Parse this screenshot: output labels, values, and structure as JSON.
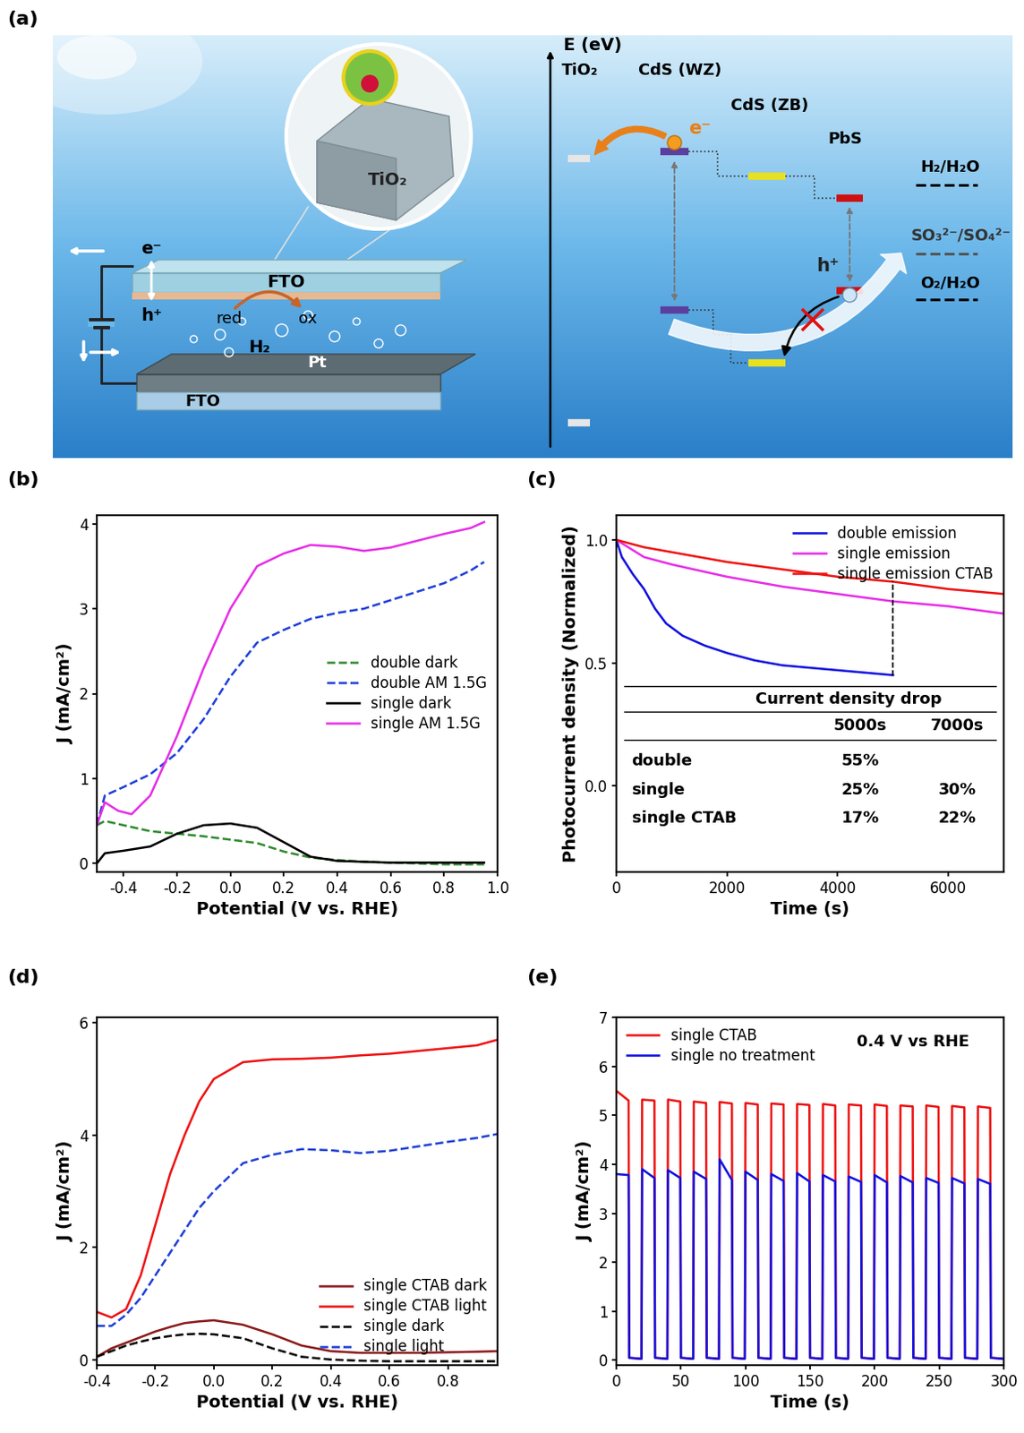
{
  "diagram": {
    "panel": "(a)",
    "energy_axis": "E (eV)",
    "materials": [
      "TiO₂",
      "CdS (WZ)",
      "CdS (ZB)",
      "PbS"
    ],
    "redox_levels": [
      "H₂/H₂O",
      "SO₃²⁻/SO₄²⁻",
      "O₂/H₂O"
    ],
    "carriers": {
      "electron": "e⁻",
      "hole": "h⁺"
    },
    "cell": {
      "photoanode": "FTO",
      "cathode_substrate": "FTO",
      "catalyst": "Pt",
      "gas": "H₂",
      "reduced": "red",
      "oxidized": "ox",
      "particle": "TiO₂",
      "electron": "e⁻",
      "hole": "h⁺"
    }
  },
  "chart_data": [
    {
      "type": "line",
      "panel": "(b)",
      "x_label": "Potential (V vs. RHE)",
      "y_label": "J (mA/cm²)",
      "xlim": [
        -0.5,
        1.0
      ],
      "ylim": [
        -0.1,
        4.1
      ],
      "xticks": [
        -0.4,
        -0.2,
        {
          "value": 0,
          "label": "0.0"
        },
        0.2,
        0.4,
        0.6,
        0.8,
        {
          "value": 1,
          "label": "1.0"
        }
      ],
      "yticks": [
        0,
        1,
        2,
        3,
        4
      ],
      "legend": "center right",
      "series": [
        {
          "name": "double dark",
          "color": "#2e8b2e",
          "line_style": "dashed",
          "x": [
            -0.5,
            -0.47,
            -0.4,
            -0.3,
            -0.2,
            -0.1,
            0.0,
            0.1,
            0.2,
            0.3,
            0.4,
            0.5,
            0.6,
            0.7,
            0.8,
            0.9,
            0.95
          ],
          "values": [
            0.45,
            0.5,
            0.45,
            0.38,
            0.35,
            0.32,
            0.28,
            0.24,
            0.14,
            0.07,
            0.04,
            0.02,
            0.01,
            0.0,
            -0.01,
            -0.01,
            -0.01
          ]
        },
        {
          "name": "double AM 1.5G",
          "color": "#1f3fd8",
          "line_style": "dashed",
          "x": [
            -0.5,
            -0.47,
            -0.4,
            -0.3,
            -0.2,
            -0.1,
            0.0,
            0.1,
            0.2,
            0.3,
            0.4,
            0.5,
            0.6,
            0.7,
            0.8,
            0.9,
            0.95
          ],
          "values": [
            0.45,
            0.8,
            0.9,
            1.05,
            1.3,
            1.7,
            2.2,
            2.6,
            2.75,
            2.88,
            2.95,
            3.0,
            3.1,
            3.2,
            3.3,
            3.45,
            3.55
          ]
        },
        {
          "name": "single dark",
          "color": "#000000",
          "line_style": "solid",
          "x": [
            -0.5,
            -0.47,
            -0.4,
            -0.3,
            -0.2,
            -0.1,
            0.0,
            0.1,
            0.2,
            0.3,
            0.4,
            0.5,
            0.6,
            0.7,
            0.8,
            0.9,
            0.95
          ],
          "values": [
            0.0,
            0.12,
            0.15,
            0.2,
            0.35,
            0.45,
            0.47,
            0.42,
            0.25,
            0.08,
            0.03,
            0.02,
            0.01,
            0.01,
            0.01,
            0.01,
            0.01
          ]
        },
        {
          "name": "single AM 1.5G",
          "color": "#e62ee6",
          "line_style": "solid",
          "x": [
            -0.5,
            -0.47,
            -0.42,
            -0.37,
            -0.3,
            -0.2,
            -0.1,
            0.0,
            0.1,
            0.2,
            0.3,
            0.4,
            0.5,
            0.6,
            0.7,
            0.8,
            0.9,
            0.95
          ],
          "values": [
            0.45,
            0.72,
            0.62,
            0.58,
            0.8,
            1.5,
            2.3,
            3.0,
            3.5,
            3.65,
            3.75,
            3.73,
            3.68,
            3.72,
            3.8,
            3.88,
            3.95,
            4.02
          ]
        }
      ]
    },
    {
      "type": "line",
      "panel": "(c)",
      "x_label": "Time (s)",
      "y_label": "Photocurrent density (Normalized)",
      "xlim": [
        0,
        7000
      ],
      "ylim": [
        -0.35,
        1.1
      ],
      "xticks": [
        0,
        2000,
        4000,
        6000
      ],
      "yticks": [
        {
          "value": 0,
          "label": "0.0"
        },
        0.5,
        {
          "value": 1,
          "label": "1.0"
        }
      ],
      "legend": "upper right",
      "series": [
        {
          "name": "double emission",
          "color": "#1010e0",
          "line_style": "solid",
          "x": [
            0,
            100,
            300,
            500,
            700,
            900,
            1200,
            1600,
            2000,
            2500,
            3000,
            3500,
            4000,
            4500,
            5000
          ],
          "values": [
            1.0,
            0.93,
            0.86,
            0.8,
            0.72,
            0.66,
            0.61,
            0.57,
            0.54,
            0.51,
            0.49,
            0.48,
            0.47,
            0.46,
            0.45
          ]
        },
        {
          "name": "single emission",
          "color": "#e62ee6",
          "line_style": "solid",
          "x": [
            0,
            500,
            1000,
            2000,
            3000,
            4000,
            5000,
            6000,
            7000
          ],
          "values": [
            1.0,
            0.93,
            0.9,
            0.85,
            0.81,
            0.78,
            0.75,
            0.73,
            0.7
          ]
        },
        {
          "name": "single emission CTAB",
          "color": "#ee1111",
          "line_style": "solid",
          "x": [
            0,
            500,
            1000,
            2000,
            3000,
            4000,
            5000,
            6000,
            7000
          ],
          "values": [
            1.0,
            0.97,
            0.95,
            0.91,
            0.88,
            0.85,
            0.83,
            0.8,
            0.78
          ]
        }
      ],
      "reference_line": {
        "x": 5000,
        "y": [
          0.45,
          0.83
        ]
      },
      "table": {
        "title": "Current density drop",
        "columns": [
          "5000s",
          "7000s"
        ],
        "rows": [
          {
            "label": "double",
            "values": [
              "55%",
              null
            ]
          },
          {
            "label": "single",
            "values": [
              "25%",
              "30%"
            ]
          },
          {
            "label": "single CTAB",
            "values": [
              "17%",
              "22%"
            ]
          }
        ]
      }
    },
    {
      "type": "line",
      "panel": "(d)",
      "x_label": "Potential (V vs. RHE)",
      "y_label": "J (mA/cm²)",
      "xlim": [
        -0.4,
        0.97
      ],
      "ylim": [
        -0.1,
        6.1
      ],
      "xticks": [
        -0.4,
        -0.2,
        {
          "value": 0,
          "label": "0.0"
        },
        0.2,
        0.4,
        0.6,
        0.8
      ],
      "yticks": [
        0,
        2,
        4,
        6
      ],
      "legend": "lower right",
      "series": [
        {
          "name": "single CTAB dark",
          "color": "#8b1a1a",
          "line_style": "solid",
          "x": [
            -0.4,
            -0.35,
            -0.3,
            -0.25,
            -0.2,
            -0.15,
            -0.1,
            -0.05,
            0.0,
            0.1,
            0.2,
            0.3,
            0.4,
            0.5,
            0.6,
            0.7,
            0.8,
            0.9,
            0.97
          ],
          "values": [
            0.05,
            0.2,
            0.3,
            0.4,
            0.5,
            0.58,
            0.65,
            0.68,
            0.7,
            0.62,
            0.45,
            0.25,
            0.15,
            0.12,
            0.12,
            0.12,
            0.13,
            0.14,
            0.15
          ]
        },
        {
          "name": "single CTAB light",
          "color": "#ee1111",
          "line_style": "solid",
          "x": [
            -0.4,
            -0.35,
            -0.3,
            -0.25,
            -0.2,
            -0.15,
            -0.1,
            -0.05,
            0.0,
            0.1,
            0.2,
            0.3,
            0.4,
            0.5,
            0.6,
            0.7,
            0.8,
            0.9,
            0.97
          ],
          "values": [
            0.85,
            0.75,
            0.9,
            1.5,
            2.4,
            3.3,
            4.0,
            4.6,
            5.0,
            5.3,
            5.35,
            5.36,
            5.38,
            5.42,
            5.45,
            5.5,
            5.55,
            5.6,
            5.7
          ]
        },
        {
          "name": "single dark",
          "color": "#000000",
          "line_style": "dashed",
          "x": [
            -0.4,
            -0.35,
            -0.3,
            -0.25,
            -0.2,
            -0.15,
            -0.1,
            -0.05,
            0.0,
            0.1,
            0.2,
            0.3,
            0.4,
            0.5,
            0.6,
            0.7,
            0.8,
            0.9,
            0.97
          ],
          "values": [
            0.05,
            0.15,
            0.25,
            0.32,
            0.38,
            0.42,
            0.45,
            0.46,
            0.45,
            0.38,
            0.2,
            0.05,
            0.0,
            -0.02,
            -0.03,
            -0.03,
            -0.03,
            -0.03,
            -0.03
          ]
        },
        {
          "name": "single light",
          "color": "#1f3fd8",
          "line_style": "dashed",
          "x": [
            -0.4,
            -0.35,
            -0.3,
            -0.25,
            -0.2,
            -0.15,
            -0.1,
            -0.05,
            0.0,
            0.1,
            0.2,
            0.3,
            0.4,
            0.5,
            0.6,
            0.7,
            0.8,
            0.9,
            0.97
          ],
          "values": [
            0.6,
            0.6,
            0.8,
            1.1,
            1.5,
            1.9,
            2.3,
            2.7,
            3.0,
            3.5,
            3.65,
            3.75,
            3.73,
            3.68,
            3.72,
            3.8,
            3.88,
            3.95,
            4.02
          ]
        }
      ]
    },
    {
      "type": "line",
      "panel": "(e)",
      "x_label": "Time (s)",
      "y_label": "J (mA/cm²)",
      "xlim": [
        0,
        300
      ],
      "ylim": [
        -0.1,
        7
      ],
      "xticks": [
        0,
        50,
        100,
        150,
        200,
        250,
        300
      ],
      "yticks": [
        0,
        1,
        2,
        3,
        4,
        5,
        6,
        7
      ],
      "legend": "upper left",
      "annotation": "0.4 V vs RHE",
      "series": [
        {
          "name": "single CTAB",
          "color": "#ee1111",
          "line_style": "solid",
          "x": [
            0,
            9.5,
            10,
            19.5,
            20,
            29.5,
            30,
            39.5,
            40,
            49.5,
            50,
            59.5,
            60,
            69.5,
            70,
            79.5,
            80,
            89.5,
            90,
            99.5,
            100,
            109.5,
            110,
            119.5,
            120,
            129.5,
            130,
            139.5,
            140,
            149.5,
            150,
            159.5,
            160,
            169.5,
            170,
            179.5,
            180,
            189.5,
            190,
            199.5,
            200,
            209.5,
            210,
            219.5,
            220,
            229.5,
            230,
            239.5,
            240,
            249.5,
            250,
            259.5,
            260,
            269.5,
            270,
            279.5,
            280,
            289.5,
            290,
            300
          ],
          "values": [
            5.5,
            5.3,
            0.05,
            0.03,
            5.32,
            5.3,
            0.05,
            0.03,
            5.32,
            5.28,
            0.05,
            0.03,
            5.28,
            5.25,
            0.05,
            0.03,
            5.27,
            5.24,
            0.05,
            0.03,
            5.25,
            5.22,
            0.05,
            0.03,
            5.24,
            5.22,
            0.05,
            0.03,
            5.23,
            5.21,
            0.05,
            0.03,
            5.23,
            5.2,
            0.05,
            0.03,
            5.22,
            5.2,
            0.05,
            0.03,
            5.22,
            5.19,
            0.05,
            0.03,
            5.2,
            5.18,
            0.05,
            0.03,
            5.2,
            5.17,
            0.05,
            0.03,
            5.19,
            5.16,
            0.05,
            0.03,
            5.18,
            5.15,
            0.05,
            0.03
          ]
        },
        {
          "name": "single no treatment",
          "color": "#1010e0",
          "line_style": "solid",
          "x": [
            0,
            9.5,
            10,
            19.5,
            20,
            29.5,
            30,
            39.5,
            40,
            49.5,
            50,
            59.5,
            60,
            69.5,
            70,
            79.5,
            80,
            89.5,
            90,
            99.5,
            100,
            109.5,
            110,
            119.5,
            120,
            129.5,
            130,
            139.5,
            140,
            149.5,
            150,
            159.5,
            160,
            169.5,
            170,
            179.5,
            180,
            189.5,
            190,
            199.5,
            200,
            209.5,
            210,
            219.5,
            220,
            229.5,
            230,
            239.5,
            240,
            249.5,
            250,
            259.5,
            260,
            269.5,
            270,
            279.5,
            280,
            289.5,
            290,
            300
          ],
          "values": [
            3.8,
            3.78,
            0.05,
            0.03,
            3.9,
            3.72,
            0.05,
            0.03,
            3.88,
            3.72,
            0.05,
            0.03,
            3.85,
            3.7,
            0.05,
            0.03,
            4.1,
            3.68,
            0.05,
            0.03,
            3.85,
            3.68,
            0.05,
            0.03,
            3.8,
            3.66,
            0.05,
            0.03,
            3.82,
            3.65,
            0.05,
            0.03,
            3.78,
            3.65,
            0.05,
            0.03,
            3.75,
            3.64,
            0.05,
            0.03,
            3.78,
            3.63,
            0.05,
            0.03,
            3.76,
            3.63,
            0.05,
            0.03,
            3.72,
            3.62,
            0.05,
            0.03,
            3.72,
            3.61,
            0.05,
            0.03,
            3.7,
            3.6,
            0.05,
            0.03
          ]
        }
      ]
    }
  ]
}
